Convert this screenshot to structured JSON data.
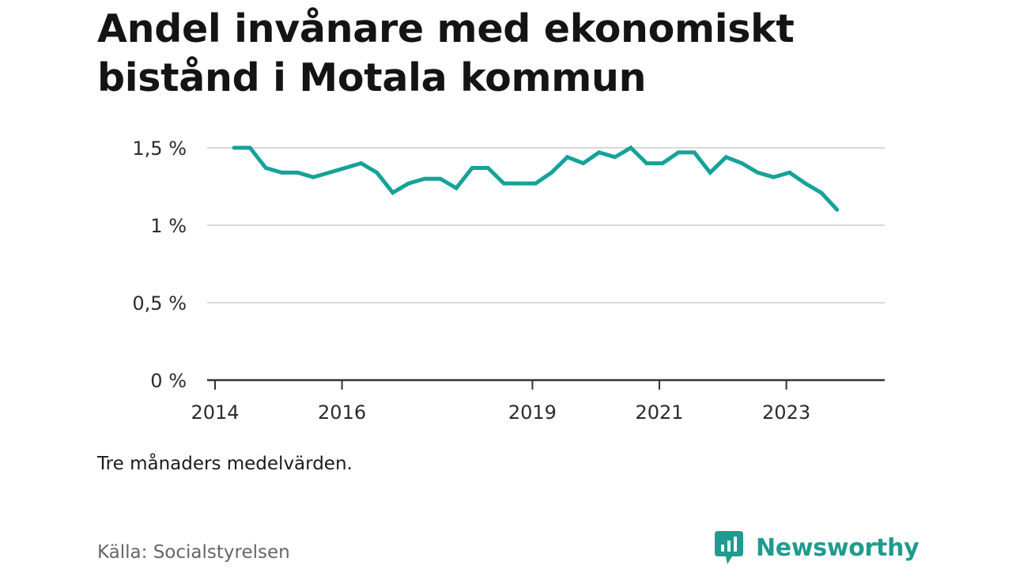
{
  "title": "Andel invånare med ekonomiskt bistånd i Motala kommun",
  "note": "Tre månaders medelvärden.",
  "source": "Källa: Socialstyrelsen",
  "brand": {
    "name": "Newsworthy",
    "icon": "newsworthy-logo-icon"
  },
  "colors": {
    "line": "#16a298",
    "grid": "#d9d9d9",
    "axis": "#333333",
    "brand": "#1f9b8f"
  },
  "chart_data": {
    "type": "line",
    "title": "Andel invånare med ekonomiskt bistånd i Motala kommun",
    "xlabel": "",
    "ylabel": "",
    "ylim": [
      0,
      1.5
    ],
    "xlim": [
      2014.0,
      2024.5
    ],
    "y_ticks": [
      {
        "value": 0,
        "label": "0 %"
      },
      {
        "value": 0.5,
        "label": "0,5 %"
      },
      {
        "value": 1.0,
        "label": "1 %"
      },
      {
        "value": 1.5,
        "label": "1,5 %"
      }
    ],
    "x_ticks": [
      {
        "value": 2014,
        "label": "2014"
      },
      {
        "value": 2016,
        "label": "2016"
      },
      {
        "value": 2019,
        "label": "2019"
      },
      {
        "value": 2021,
        "label": "2021"
      },
      {
        "value": 2023,
        "label": "2023"
      }
    ],
    "grid": true,
    "series": [
      {
        "values": [
          {
            "x": 2014.3,
            "y": 1.5
          },
          {
            "x": 2014.55,
            "y": 1.5
          },
          {
            "x": 2014.8,
            "y": 1.37
          },
          {
            "x": 2015.05,
            "y": 1.34
          },
          {
            "x": 2015.3,
            "y": 1.34
          },
          {
            "x": 2015.55,
            "y": 1.31
          },
          {
            "x": 2015.8,
            "y": 1.34
          },
          {
            "x": 2016.05,
            "y": 1.37
          },
          {
            "x": 2016.3,
            "y": 1.4
          },
          {
            "x": 2016.55,
            "y": 1.34
          },
          {
            "x": 2016.8,
            "y": 1.21
          },
          {
            "x": 2017.05,
            "y": 1.27
          },
          {
            "x": 2017.3,
            "y": 1.3
          },
          {
            "x": 2017.55,
            "y": 1.3
          },
          {
            "x": 2017.8,
            "y": 1.24
          },
          {
            "x": 2018.05,
            "y": 1.37
          },
          {
            "x": 2018.3,
            "y": 1.37
          },
          {
            "x": 2018.55,
            "y": 1.27
          },
          {
            "x": 2018.8,
            "y": 1.27
          },
          {
            "x": 2019.05,
            "y": 1.27
          },
          {
            "x": 2019.3,
            "y": 1.34
          },
          {
            "x": 2019.55,
            "y": 1.44
          },
          {
            "x": 2019.8,
            "y": 1.4
          },
          {
            "x": 2020.05,
            "y": 1.47
          },
          {
            "x": 2020.3,
            "y": 1.44
          },
          {
            "x": 2020.55,
            "y": 1.5
          },
          {
            "x": 2020.8,
            "y": 1.4
          },
          {
            "x": 2021.05,
            "y": 1.4
          },
          {
            "x": 2021.3,
            "y": 1.47
          },
          {
            "x": 2021.55,
            "y": 1.47
          },
          {
            "x": 2021.8,
            "y": 1.34
          },
          {
            "x": 2022.05,
            "y": 1.44
          },
          {
            "x": 2022.3,
            "y": 1.4
          },
          {
            "x": 2022.55,
            "y": 1.34
          },
          {
            "x": 2022.8,
            "y": 1.31
          },
          {
            "x": 2023.05,
            "y": 1.34
          },
          {
            "x": 2023.3,
            "y": 1.27
          },
          {
            "x": 2023.55,
            "y": 1.21
          },
          {
            "x": 2023.8,
            "y": 1.1
          }
        ]
      }
    ]
  }
}
